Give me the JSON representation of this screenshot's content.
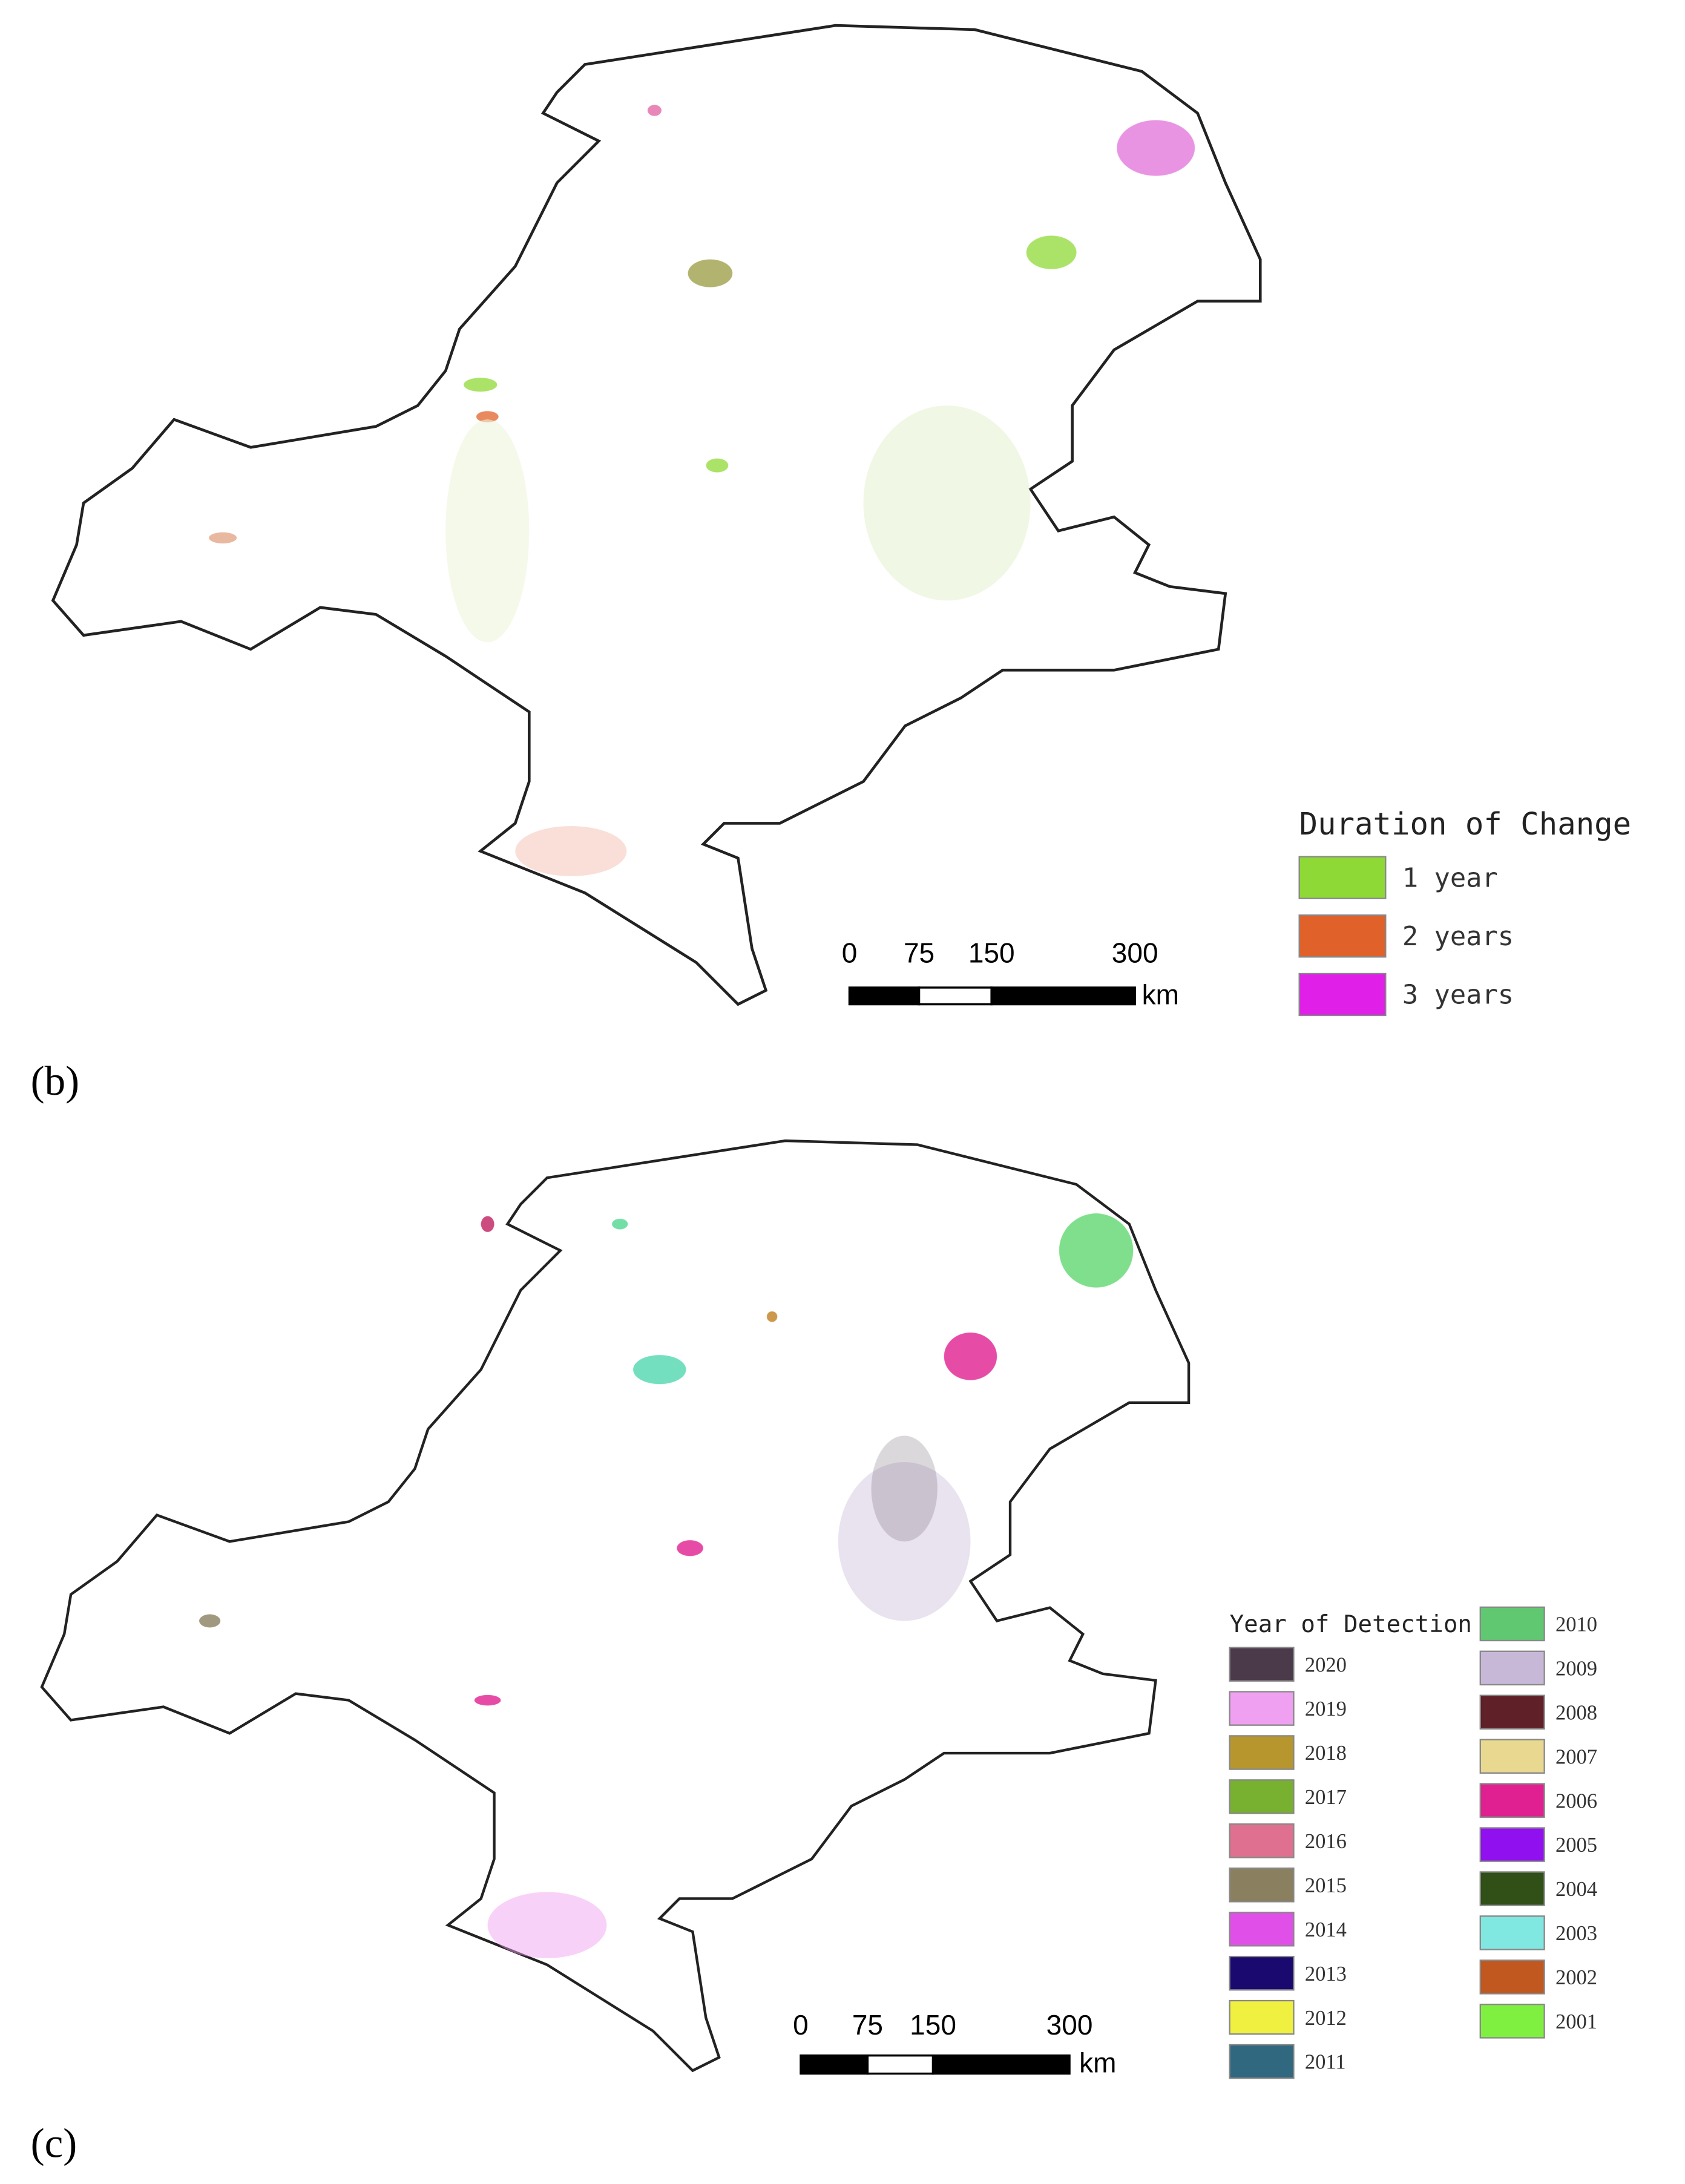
{
  "panels": [
    {
      "label": "(b)",
      "legend": {
        "title": "Duration of Change",
        "items": [
          {
            "label": "1 year",
            "color": "#8fd936"
          },
          {
            "label": "2 years",
            "color": "#e0622a"
          },
          {
            "label": "3 years",
            "color": "#e020e8"
          }
        ]
      },
      "scale_bar": {
        "ticks": [
          "0",
          "75",
          "150",
          "300"
        ],
        "unit": "km"
      }
    },
    {
      "label": "(c)",
      "legend": {
        "title": "Year of Detection",
        "items": [
          {
            "label": "2020",
            "color": "#4a3a4a"
          },
          {
            "label": "2019",
            "color": "#f0a0f0"
          },
          {
            "label": "2018",
            "color": "#b8962e"
          },
          {
            "label": "2017",
            "color": "#78b030"
          },
          {
            "label": "2016",
            "color": "#e07090"
          },
          {
            "label": "2015",
            "color": "#8a8060"
          },
          {
            "label": "2014",
            "color": "#e050e8"
          },
          {
            "label": "2013",
            "color": "#1a0a70"
          },
          {
            "label": "2012",
            "color": "#f0f040"
          },
          {
            "label": "2011",
            "color": "#306880"
          },
          {
            "label": "2010",
            "color": "#60c870"
          },
          {
            "label": "2009",
            "color": "#c8b8d8"
          },
          {
            "label": "2008",
            "color": "#602028"
          },
          {
            "label": "2007",
            "color": "#e8d890"
          },
          {
            "label": "2006",
            "color": "#e02090"
          },
          {
            "label": "2005",
            "color": "#9010f0"
          },
          {
            "label": "2004",
            "color": "#305018"
          },
          {
            "label": "2003",
            "color": "#80e8e0"
          },
          {
            "label": "2002",
            "color": "#c05820"
          },
          {
            "label": "2001",
            "color": "#80f040"
          }
        ]
      },
      "scale_bar": {
        "ticks": [
          "0",
          "75",
          "150",
          "300"
        ],
        "unit": "km"
      }
    }
  ]
}
